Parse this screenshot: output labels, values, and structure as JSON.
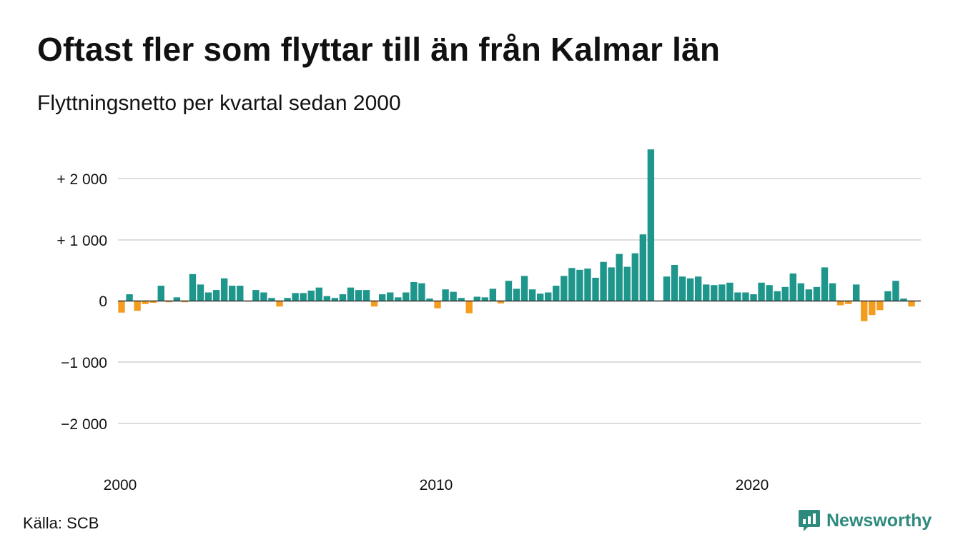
{
  "header": {
    "title": "Oftast fler som flyttar till än från Kalmar län",
    "subtitle": "Flyttningsnetto per kvartal sedan 2000"
  },
  "footer": {
    "source": "Källa: SCB",
    "brand": "Newsworthy",
    "brand_icon": "newsworthy-logo-icon"
  },
  "colors": {
    "positive": "#1f968b",
    "negative": "#f39c1e",
    "grid": "#dddddd",
    "baseline": "#333333",
    "brand": "#2f8a7e"
  },
  "chart_data": {
    "type": "bar",
    "title": "Oftast fler som flyttar till än från Kalmar län",
    "subtitle": "Flyttningsnetto per kvartal sedan 2000",
    "xlabel": "",
    "ylabel": "",
    "ylim": [
      -2500,
      2500
    ],
    "grid": true,
    "legend": "none",
    "y_ticks": [
      {
        "value": 2000,
        "label": "+ 2 000"
      },
      {
        "value": 1000,
        "label": "+ 1 000"
      },
      {
        "value": 0,
        "label": "0"
      },
      {
        "value": -1000,
        "label": "−1 000"
      },
      {
        "value": -2000,
        "label": "−2 000"
      }
    ],
    "x_ticks": [
      {
        "value": "2000",
        "label": "2000"
      },
      {
        "value": "2010",
        "label": "2010"
      },
      {
        "value": "2020",
        "label": "2020"
      }
    ],
    "categories": [
      "2000K1",
      "2000K2",
      "2000K3",
      "2000K4",
      "2001K1",
      "2001K2",
      "2001K3",
      "2001K4",
      "2002K1",
      "2002K2",
      "2002K3",
      "2002K4",
      "2003K1",
      "2003K2",
      "2003K3",
      "2003K4",
      "2004K1",
      "2004K2",
      "2004K3",
      "2004K4",
      "2005K1",
      "2005K2",
      "2005K3",
      "2005K4",
      "2006K1",
      "2006K2",
      "2006K3",
      "2006K4",
      "2007K1",
      "2007K2",
      "2007K3",
      "2007K4",
      "2008K1",
      "2008K2",
      "2008K3",
      "2008K4",
      "2009K1",
      "2009K2",
      "2009K3",
      "2009K4",
      "2010K1",
      "2010K2",
      "2010K3",
      "2010K4",
      "2011K1",
      "2011K2",
      "2011K3",
      "2011K4",
      "2012K1",
      "2012K2",
      "2012K3",
      "2012K4",
      "2013K1",
      "2013K2",
      "2013K3",
      "2013K4",
      "2014K1",
      "2014K2",
      "2014K3",
      "2014K4",
      "2015K1",
      "2015K2",
      "2015K3",
      "2015K4",
      "2016K1",
      "2016K2",
      "2016K3",
      "2016K4",
      "2017K1",
      "2017K2",
      "2017K3",
      "2017K4",
      "2018K1",
      "2018K2",
      "2018K3",
      "2018K4",
      "2019K1",
      "2019K2",
      "2019K3",
      "2019K4",
      "2020K1",
      "2020K2",
      "2020K3",
      "2020K4",
      "2021K1",
      "2021K2",
      "2021K3",
      "2021K4",
      "2022K1",
      "2022K2",
      "2022K3",
      "2022K4",
      "2023K1",
      "2023K2",
      "2023K3",
      "2023K4",
      "2024K1",
      "2024K2",
      "2024K3",
      "2024K4",
      "2025K1"
    ],
    "values": [
      -190,
      110,
      -160,
      -50,
      -30,
      250,
      -20,
      60,
      -20,
      440,
      270,
      140,
      180,
      370,
      250,
      250,
      -10,
      180,
      140,
      50,
      -90,
      50,
      130,
      130,
      170,
      220,
      80,
      50,
      110,
      220,
      180,
      180,
      -90,
      110,
      140,
      60,
      140,
      310,
      290,
      40,
      -120,
      190,
      150,
      50,
      -200,
      70,
      60,
      200,
      -40,
      330,
      200,
      410,
      190,
      120,
      140,
      250,
      410,
      540,
      510,
      530,
      380,
      640,
      550,
      770,
      560,
      780,
      1090,
      2480,
      0,
      400,
      590,
      400,
      370,
      400,
      270,
      260,
      270,
      300,
      140,
      140,
      110,
      300,
      260,
      160,
      230,
      450,
      290,
      190,
      230,
      550,
      290,
      -70,
      -50,
      270,
      -330,
      -230,
      -150,
      160,
      330,
      40,
      -90
    ]
  }
}
